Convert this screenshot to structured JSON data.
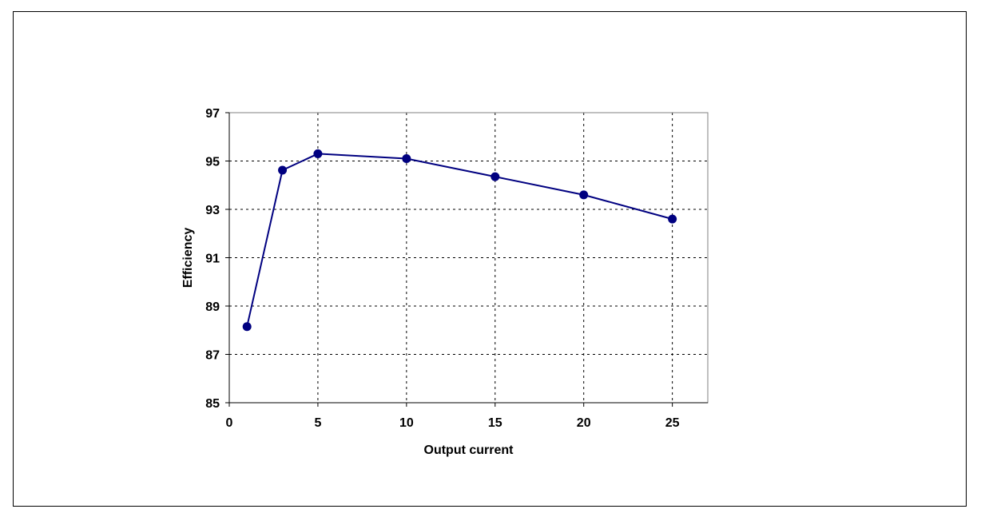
{
  "chart_data": {
    "type": "scatter",
    "title": "",
    "xlabel": "Output current",
    "ylabel": "Efficiency",
    "xlim": [
      0,
      27
    ],
    "ylim": [
      85,
      97
    ],
    "xticks": [
      0,
      5,
      10,
      15,
      20,
      25
    ],
    "yticks": [
      85,
      87,
      89,
      91,
      93,
      95,
      97
    ],
    "grid": true,
    "legend": "none",
    "series": [
      {
        "x": [
          1,
          3,
          5,
          10,
          15,
          20,
          25
        ],
        "y": [
          88.15,
          94.62,
          95.3,
          95.1,
          94.35,
          93.6,
          92.6
        ],
        "color": "#000080",
        "marker": "circle",
        "connected": true
      }
    ]
  }
}
